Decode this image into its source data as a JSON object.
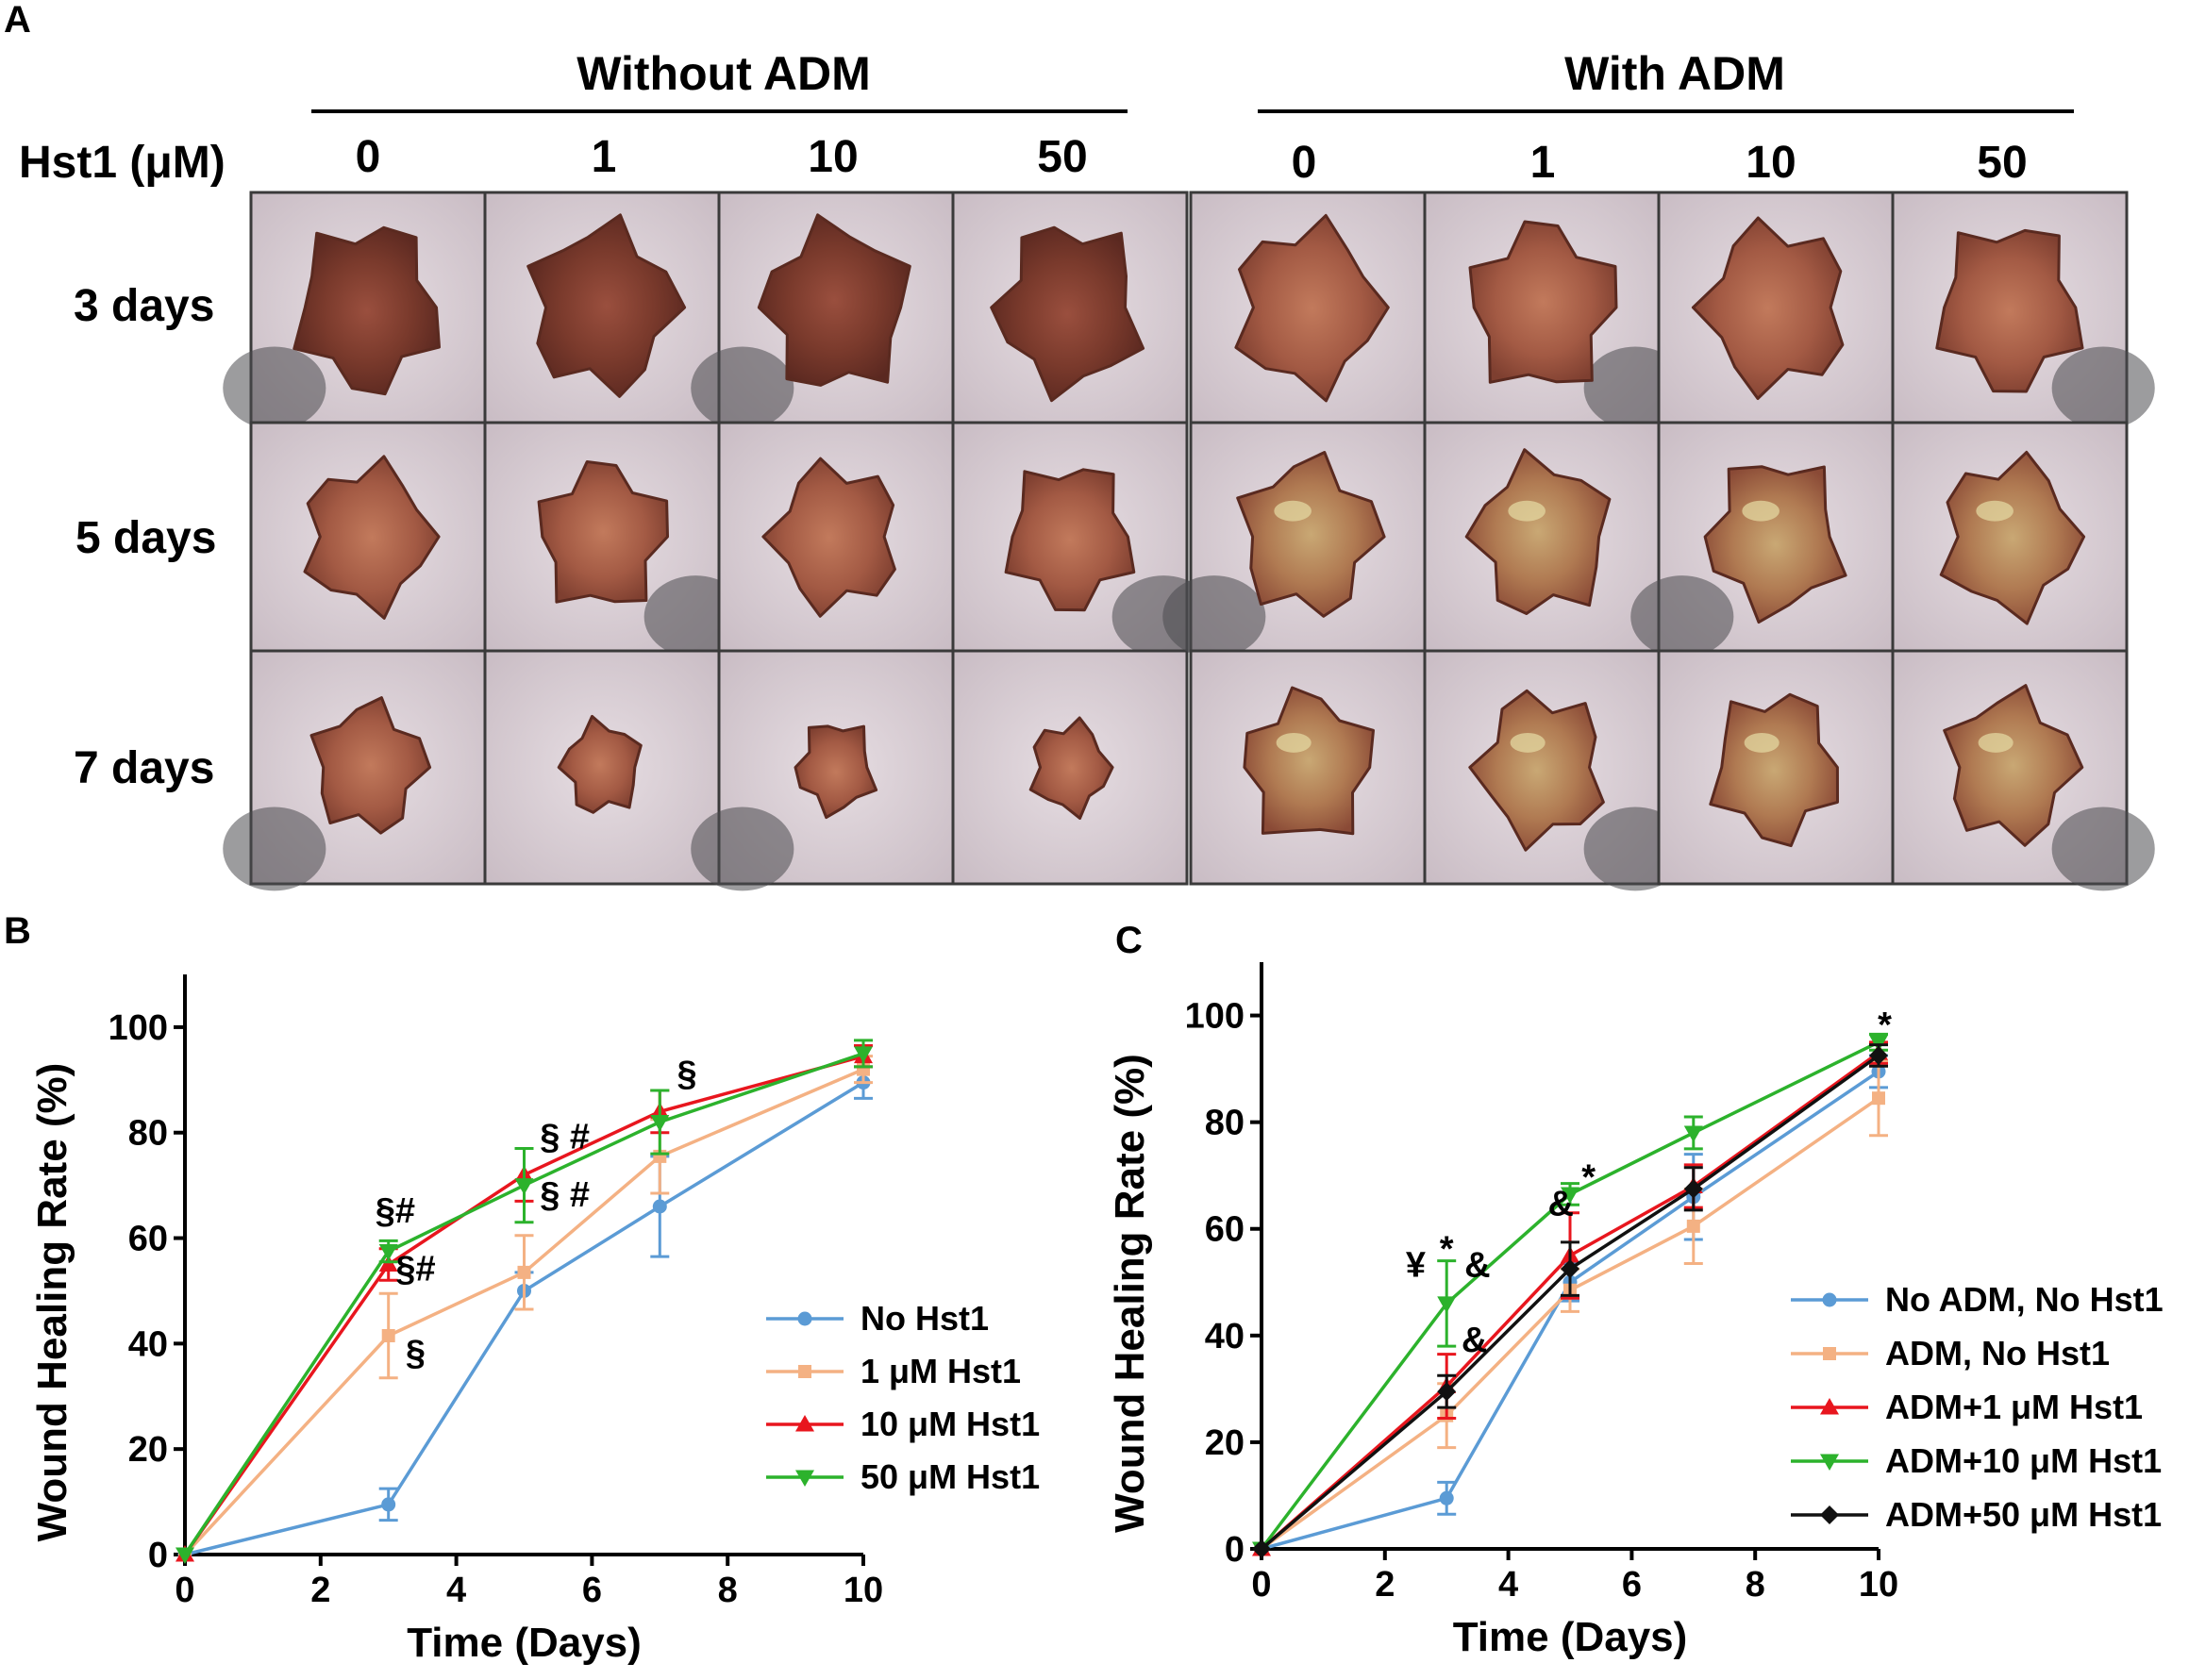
{
  "panel_labels": {
    "a": "A",
    "b": "B",
    "c": "C"
  },
  "photo_panel": {
    "group_without": "Without ADM",
    "group_with": "With ADM",
    "dose_label": "Hst1 (μM)",
    "doses": [
      "0",
      "1",
      "10",
      "50"
    ],
    "rows": [
      "3 days",
      "5 days",
      "7 days"
    ],
    "colors": {
      "skin": "#d8cfd4",
      "wound_dark": "#7a3a2c",
      "wound_mid": "#a35a44",
      "wound_light": "#c49a6a",
      "fur": "#4a4a4e"
    }
  },
  "chart_data": [
    {
      "type": "line",
      "panel": "B",
      "title": "",
      "xlabel": "Time (Days)",
      "ylabel": "Wound Healing Rate (%)",
      "xlim": [
        0,
        10
      ],
      "ylim": [
        0,
        110
      ],
      "xticks": [
        0,
        2,
        4,
        6,
        8,
        10
      ],
      "yticks": [
        0,
        20,
        40,
        60,
        80,
        100
      ],
      "legend_position": "lower-right",
      "series": [
        {
          "name": "No Hst1",
          "color": "#5b9bd5",
          "marker": "circle",
          "x": [
            0,
            3,
            5,
            7,
            10
          ],
          "values": [
            0,
            9.5,
            50,
            66,
            89.5
          ],
          "errors": [
            0,
            3,
            3.5,
            9.5,
            3
          ]
        },
        {
          "name": "1 μM Hst1",
          "color": "#f4b183",
          "marker": "square",
          "x": [
            0,
            3,
            5,
            7,
            10
          ],
          "values": [
            0,
            41.5,
            53.5,
            75.5,
            92
          ],
          "errors": [
            0,
            8,
            7,
            7,
            2.5
          ]
        },
        {
          "name": "10 μM Hst1",
          "color": "#e8161e",
          "marker": "triangle-up",
          "x": [
            0,
            3,
            5,
            7,
            10
          ],
          "values": [
            0,
            55,
            72,
            84,
            94.5
          ],
          "errors": [
            0,
            3,
            5,
            4,
            2
          ]
        },
        {
          "name": "50 μM Hst1",
          "color": "#2cb22c",
          "marker": "triangle-down",
          "x": [
            0,
            3,
            5,
            7,
            10
          ],
          "values": [
            0,
            57.5,
            70,
            82,
            95
          ],
          "errors": [
            0,
            2,
            7,
            6,
            2.5
          ]
        }
      ],
      "annotations": [
        {
          "text": "§#",
          "x": 3.1,
          "y": 63
        },
        {
          "text": "§#",
          "x": 3.4,
          "y": 52
        },
        {
          "text": "§",
          "x": 3.4,
          "y": 36
        },
        {
          "text": "§ #",
          "x": 5.6,
          "y": 77
        },
        {
          "text": "§ #",
          "x": 5.6,
          "y": 66
        },
        {
          "text": "§",
          "x": 7.4,
          "y": 89
        }
      ]
    },
    {
      "type": "line",
      "panel": "C",
      "title": "",
      "xlabel": "Time (Days)",
      "ylabel": "Wound Healing Rate (%)",
      "xlim": [
        0,
        10
      ],
      "ylim": [
        0,
        110
      ],
      "xticks": [
        0,
        2,
        4,
        6,
        8,
        10
      ],
      "yticks": [
        0,
        20,
        40,
        60,
        80,
        100
      ],
      "legend_position": "lower-right",
      "series": [
        {
          "name": "No ADM, No Hst1",
          "color": "#5b9bd5",
          "marker": "circle",
          "x": [
            0,
            3,
            5,
            7,
            10
          ],
          "values": [
            0,
            9.5,
            50,
            66,
            89.5
          ],
          "errors": [
            0,
            3,
            3.5,
            8,
            3
          ]
        },
        {
          "name": "ADM, No Hst1",
          "color": "#f4b183",
          "marker": "square",
          "x": [
            0,
            3,
            5,
            7,
            10
          ],
          "values": [
            0,
            25,
            48.5,
            60.5,
            84.5
          ],
          "errors": [
            0,
            6,
            4,
            7,
            7
          ]
        },
        {
          "name": "ADM+1 μM Hst1",
          "color": "#e8161e",
          "marker": "triangle-up",
          "x": [
            0,
            3,
            5,
            7,
            10
          ],
          "values": [
            0,
            30.5,
            55,
            68,
            93
          ],
          "errors": [
            0,
            6,
            8,
            4,
            2
          ]
        },
        {
          "name": "ADM+10 μM Hst1",
          "color": "#2cb22c",
          "marker": "triangle-down",
          "x": [
            0,
            3,
            5,
            7,
            10
          ],
          "values": [
            0,
            46,
            66.5,
            78,
            95
          ],
          "errors": [
            0,
            8,
            2,
            3,
            1.5
          ]
        },
        {
          "name": "ADM+50 μM Hst1",
          "color": "#111111",
          "marker": "diamond",
          "x": [
            0,
            3,
            5,
            7,
            10
          ],
          "values": [
            0,
            29.5,
            52.5,
            67.5,
            92.5
          ],
          "errors": [
            0,
            3,
            5,
            4,
            2
          ]
        }
      ],
      "annotations": [
        {
          "text": "¥",
          "x": 2.5,
          "y": 51
        },
        {
          "text": "*",
          "x": 3.0,
          "y": 54
        },
        {
          "text": "&",
          "x": 3.5,
          "y": 51
        },
        {
          "text": "&",
          "x": 3.45,
          "y": 37
        },
        {
          "text": "&",
          "x": 4.85,
          "y": 62.5
        },
        {
          "text": "*",
          "x": 5.3,
          "y": 67.5
        },
        {
          "text": "*",
          "x": 10.1,
          "y": 96
        }
      ]
    }
  ]
}
